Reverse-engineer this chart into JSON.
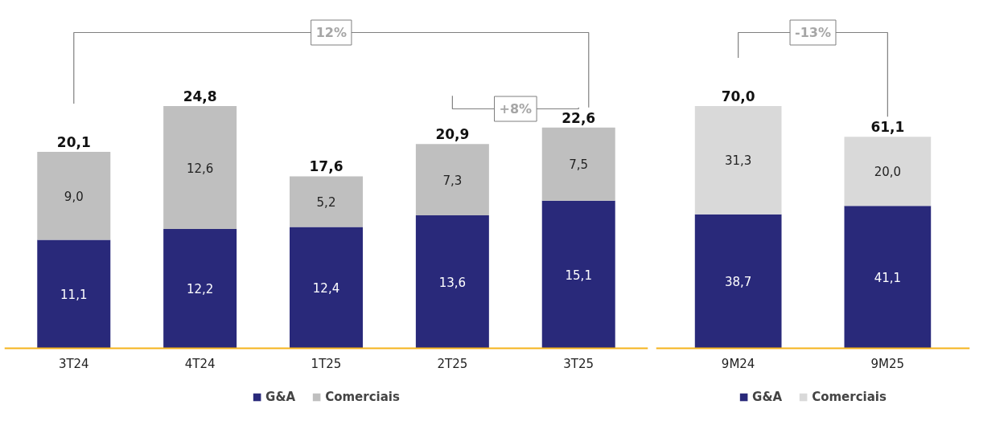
{
  "chart_data": [
    {
      "type": "bar",
      "stacked": true,
      "categories": [
        "3T24",
        "4T24",
        "1T25",
        "2T25",
        "3T25"
      ],
      "series": [
        {
          "name": "G&A",
          "color": "#29297a",
          "values": [
            11.1,
            12.2,
            12.4,
            13.6,
            15.1
          ],
          "value_labels": [
            "11,1",
            "12,2",
            "12,4",
            "13,6",
            "15,1"
          ]
        },
        {
          "name": "Comerciais",
          "color": "#bfbfbf",
          "values": [
            9.0,
            12.6,
            5.2,
            7.3,
            7.5
          ],
          "value_labels": [
            "9,0",
            "12,6",
            "5,2",
            "7,3",
            "7,5"
          ]
        }
      ],
      "totals": [
        "20,1",
        "24,8",
        "17,6",
        "20,9",
        "22,6"
      ],
      "annotations": [
        "12%",
        "+8%"
      ],
      "tick_labels": "x",
      "grid": false,
      "legend": "bottom"
    },
    {
      "type": "bar",
      "stacked": true,
      "categories": [
        "9M24",
        "9M25"
      ],
      "series": [
        {
          "name": "G&A",
          "color": "#29297a",
          "values": [
            38.7,
            41.1
          ],
          "value_labels": [
            "38,7",
            "41,1"
          ]
        },
        {
          "name": "Comerciais",
          "color": "#d9d9d9",
          "values": [
            31.3,
            20.0
          ],
          "value_labels": [
            "31,3",
            "20,0"
          ]
        }
      ],
      "totals": [
        "70,0",
        "61,1"
      ],
      "annotations": [
        "-13%"
      ],
      "tick_labels": "x",
      "grid": false,
      "legend": "bottom"
    }
  ]
}
